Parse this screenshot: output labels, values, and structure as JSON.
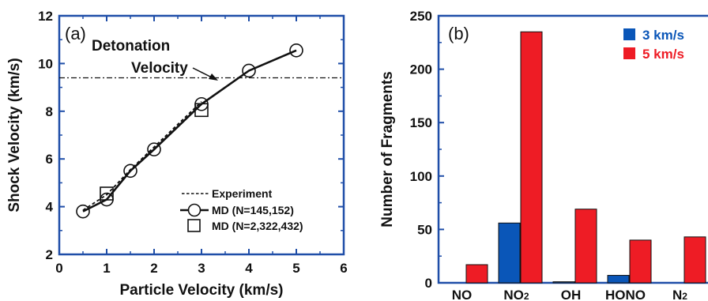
{
  "colors": {
    "axis": "#1f4ea8",
    "blue": "#0a56b8",
    "red": "#ee1c25",
    "ink": "#111111"
  },
  "chart_data": [
    {
      "type": "line",
      "panel_label": "(a)",
      "xlabel": "Particle Velocity (km/s)",
      "ylabel": "Shock Velocity (km/s)",
      "xlim": [
        0,
        6
      ],
      "ylim": [
        2,
        12
      ],
      "xticks": [
        "0",
        "1",
        "2",
        "3",
        "4",
        "5",
        "6"
      ],
      "yticks": [
        "2",
        "4",
        "6",
        "8",
        "10",
        "12"
      ],
      "reference_line": {
        "y": 9.4,
        "label_line1": "Detonation",
        "label_line2": "Velocity"
      },
      "legend": [
        {
          "label": "Experiment",
          "style": "dashed"
        },
        {
          "label": "MD (N=145,152)",
          "style": "line-circle"
        },
        {
          "label": "MD (N=2,322,432)",
          "style": "square"
        }
      ],
      "series": [
        {
          "name": "Experiment",
          "x": [
            0.5,
            1.0,
            1.5,
            2.0,
            2.5,
            3.0
          ],
          "y": [
            3.85,
            4.5,
            5.55,
            6.5,
            7.45,
            8.4
          ]
        },
        {
          "name": "MD (N=145,152)",
          "x": [
            0.5,
            1.0,
            1.5,
            2.0,
            3.0,
            4.0,
            5.0
          ],
          "y": [
            3.8,
            4.3,
            5.5,
            6.4,
            8.3,
            9.7,
            10.55
          ]
        },
        {
          "name": "MD (N=2,322,432)",
          "x": [
            1.0,
            3.0
          ],
          "y": [
            4.55,
            8.05
          ]
        }
      ]
    },
    {
      "type": "bar",
      "panel_label": "(b)",
      "xlabel": "",
      "ylabel": "Number of Fragments",
      "ylim": [
        0,
        250
      ],
      "yticks": [
        "0",
        "50",
        "100",
        "150",
        "200",
        "250"
      ],
      "categories": [
        "NO",
        "NO2",
        "OH",
        "HONO",
        "N2"
      ],
      "series": [
        {
          "name": "3 km/s",
          "values": [
            0,
            56,
            1,
            7,
            0
          ]
        },
        {
          "name": "5 km/s",
          "values": [
            17,
            235,
            69,
            40,
            43
          ]
        }
      ]
    }
  ]
}
